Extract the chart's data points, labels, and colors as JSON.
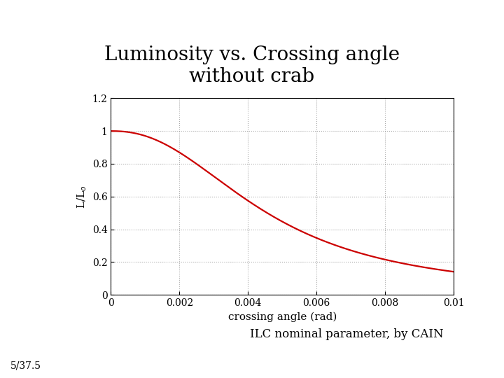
{
  "title": "Luminosity vs. Crossing angle\nwithout crab",
  "xlabel": "crossing angle (rad)",
  "ylabel": "L/L$_o$",
  "xlim": [
    0,
    0.01
  ],
  "ylim": [
    0,
    1.2
  ],
  "xticks": [
    0,
    0.002,
    0.004,
    0.006,
    0.008,
    0.01
  ],
  "yticks": [
    0,
    0.2,
    0.4,
    0.6,
    0.8,
    1.0,
    1.2
  ],
  "line_color": "#cc0000",
  "line_width": 1.6,
  "grid_color": "#aaaaaa",
  "grid_style": "dotted",
  "background_color": "#ffffff",
  "annotation_text": "ILC nominal parameter, by CAIN",
  "slide_label": "5/37.5",
  "title_fontsize": 20,
  "axis_label_fontsize": 11,
  "tick_fontsize": 10,
  "annotation_fontsize": 12,
  "slide_label_fontsize": 10,
  "curve_a": 0.00456,
  "curve_b": 2.3
}
